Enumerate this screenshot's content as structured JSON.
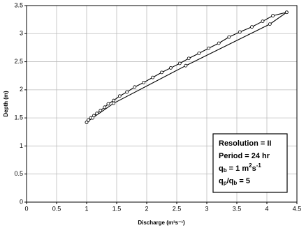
{
  "chart_data": {
    "type": "scatter",
    "x_label": "Discharge (m³s⁻¹)",
    "y_label": "Depth (m)",
    "xlim": [
      0,
      4.5
    ],
    "xticks": [
      0,
      0.5,
      1,
      1.5,
      2,
      2.5,
      3,
      3.5,
      4,
      4.5
    ],
    "ylim": [
      0,
      3.5
    ],
    "yticks": [
      0,
      0.5,
      1,
      1.5,
      2,
      2.5,
      3,
      3.5
    ],
    "grid": true,
    "series": [
      {
        "color": "#000000",
        "marker": true,
        "x": [
          1.0,
          1.03,
          1.07,
          1.12,
          1.17,
          1.23,
          1.3,
          1.36,
          1.45,
          1.55,
          1.67,
          1.8,
          1.95,
          2.1,
          2.25,
          2.4,
          2.55,
          2.7,
          2.87,
          3.03,
          3.2,
          3.37,
          3.55,
          3.75,
          3.93,
          4.1,
          4.33
        ],
        "values": [
          1.42,
          1.46,
          1.5,
          1.54,
          1.58,
          1.63,
          1.69,
          1.75,
          1.81,
          1.89,
          1.96,
          2.05,
          2.13,
          2.22,
          2.31,
          2.39,
          2.47,
          2.56,
          2.65,
          2.74,
          2.83,
          2.94,
          3.03,
          3.12,
          3.22,
          3.32,
          3.38
        ]
      },
      {
        "color": "#000000",
        "marker": true,
        "x": [
          4.33,
          4.05,
          2.65,
          1.45,
          1.1,
          1.0
        ],
        "values": [
          3.38,
          3.17,
          2.43,
          1.76,
          1.5,
          1.42
        ]
      }
    ],
    "annotation": [
      [
        "Resolution = II"
      ],
      [
        "Period = 24 hr"
      ],
      [
        "q",
        "b",
        " = 1 m",
        "2",
        "s",
        "-1"
      ],
      [
        "q",
        "p",
        "/q",
        "b",
        " = 5"
      ]
    ],
    "annotation_roles": [
      [
        "n"
      ],
      [
        "n"
      ],
      [
        "n",
        "sub",
        "n",
        "sup",
        "n",
        "sup"
      ],
      [
        "n",
        "sub",
        "n",
        "sub",
        "n"
      ]
    ]
  }
}
